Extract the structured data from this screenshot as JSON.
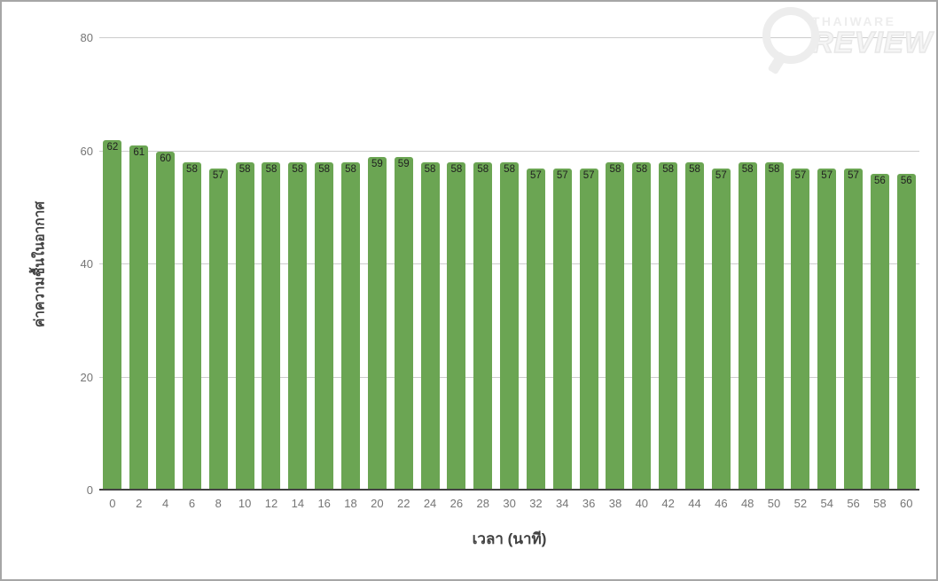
{
  "watermark": {
    "line1": "THAIWARE",
    "line2": "REVIEW"
  },
  "colors": {
    "bar": "#6ba553",
    "grid": "#cccccc",
    "axis_line": "#424242",
    "tick_label": "#757575",
    "axis_title": "#424242",
    "annotation": "#212121",
    "watermark": "#ededed",
    "border": "#a6a6a6",
    "background": "#ffffff"
  },
  "chart_data": {
    "type": "bar",
    "title": "",
    "xlabel": "เวลา (นาที)",
    "ylabel": "ค่าความชื้นในอากาศ",
    "categories": [
      0,
      2,
      4,
      6,
      8,
      10,
      12,
      14,
      16,
      18,
      20,
      22,
      24,
      26,
      28,
      30,
      32,
      34,
      36,
      38,
      40,
      42,
      44,
      46,
      48,
      50,
      52,
      54,
      56,
      58,
      60
    ],
    "values": [
      62,
      61,
      60,
      58,
      57,
      58,
      58,
      58,
      58,
      58,
      59,
      59,
      58,
      58,
      58,
      58,
      57,
      57,
      57,
      58,
      58,
      58,
      58,
      57,
      58,
      58,
      57,
      57,
      57,
      56,
      56
    ],
    "ylim": [
      0,
      80
    ],
    "yticks": [
      0,
      20,
      40,
      60,
      80
    ],
    "grid": true,
    "legend": "none",
    "annotations": "value shown at top of each bar"
  }
}
